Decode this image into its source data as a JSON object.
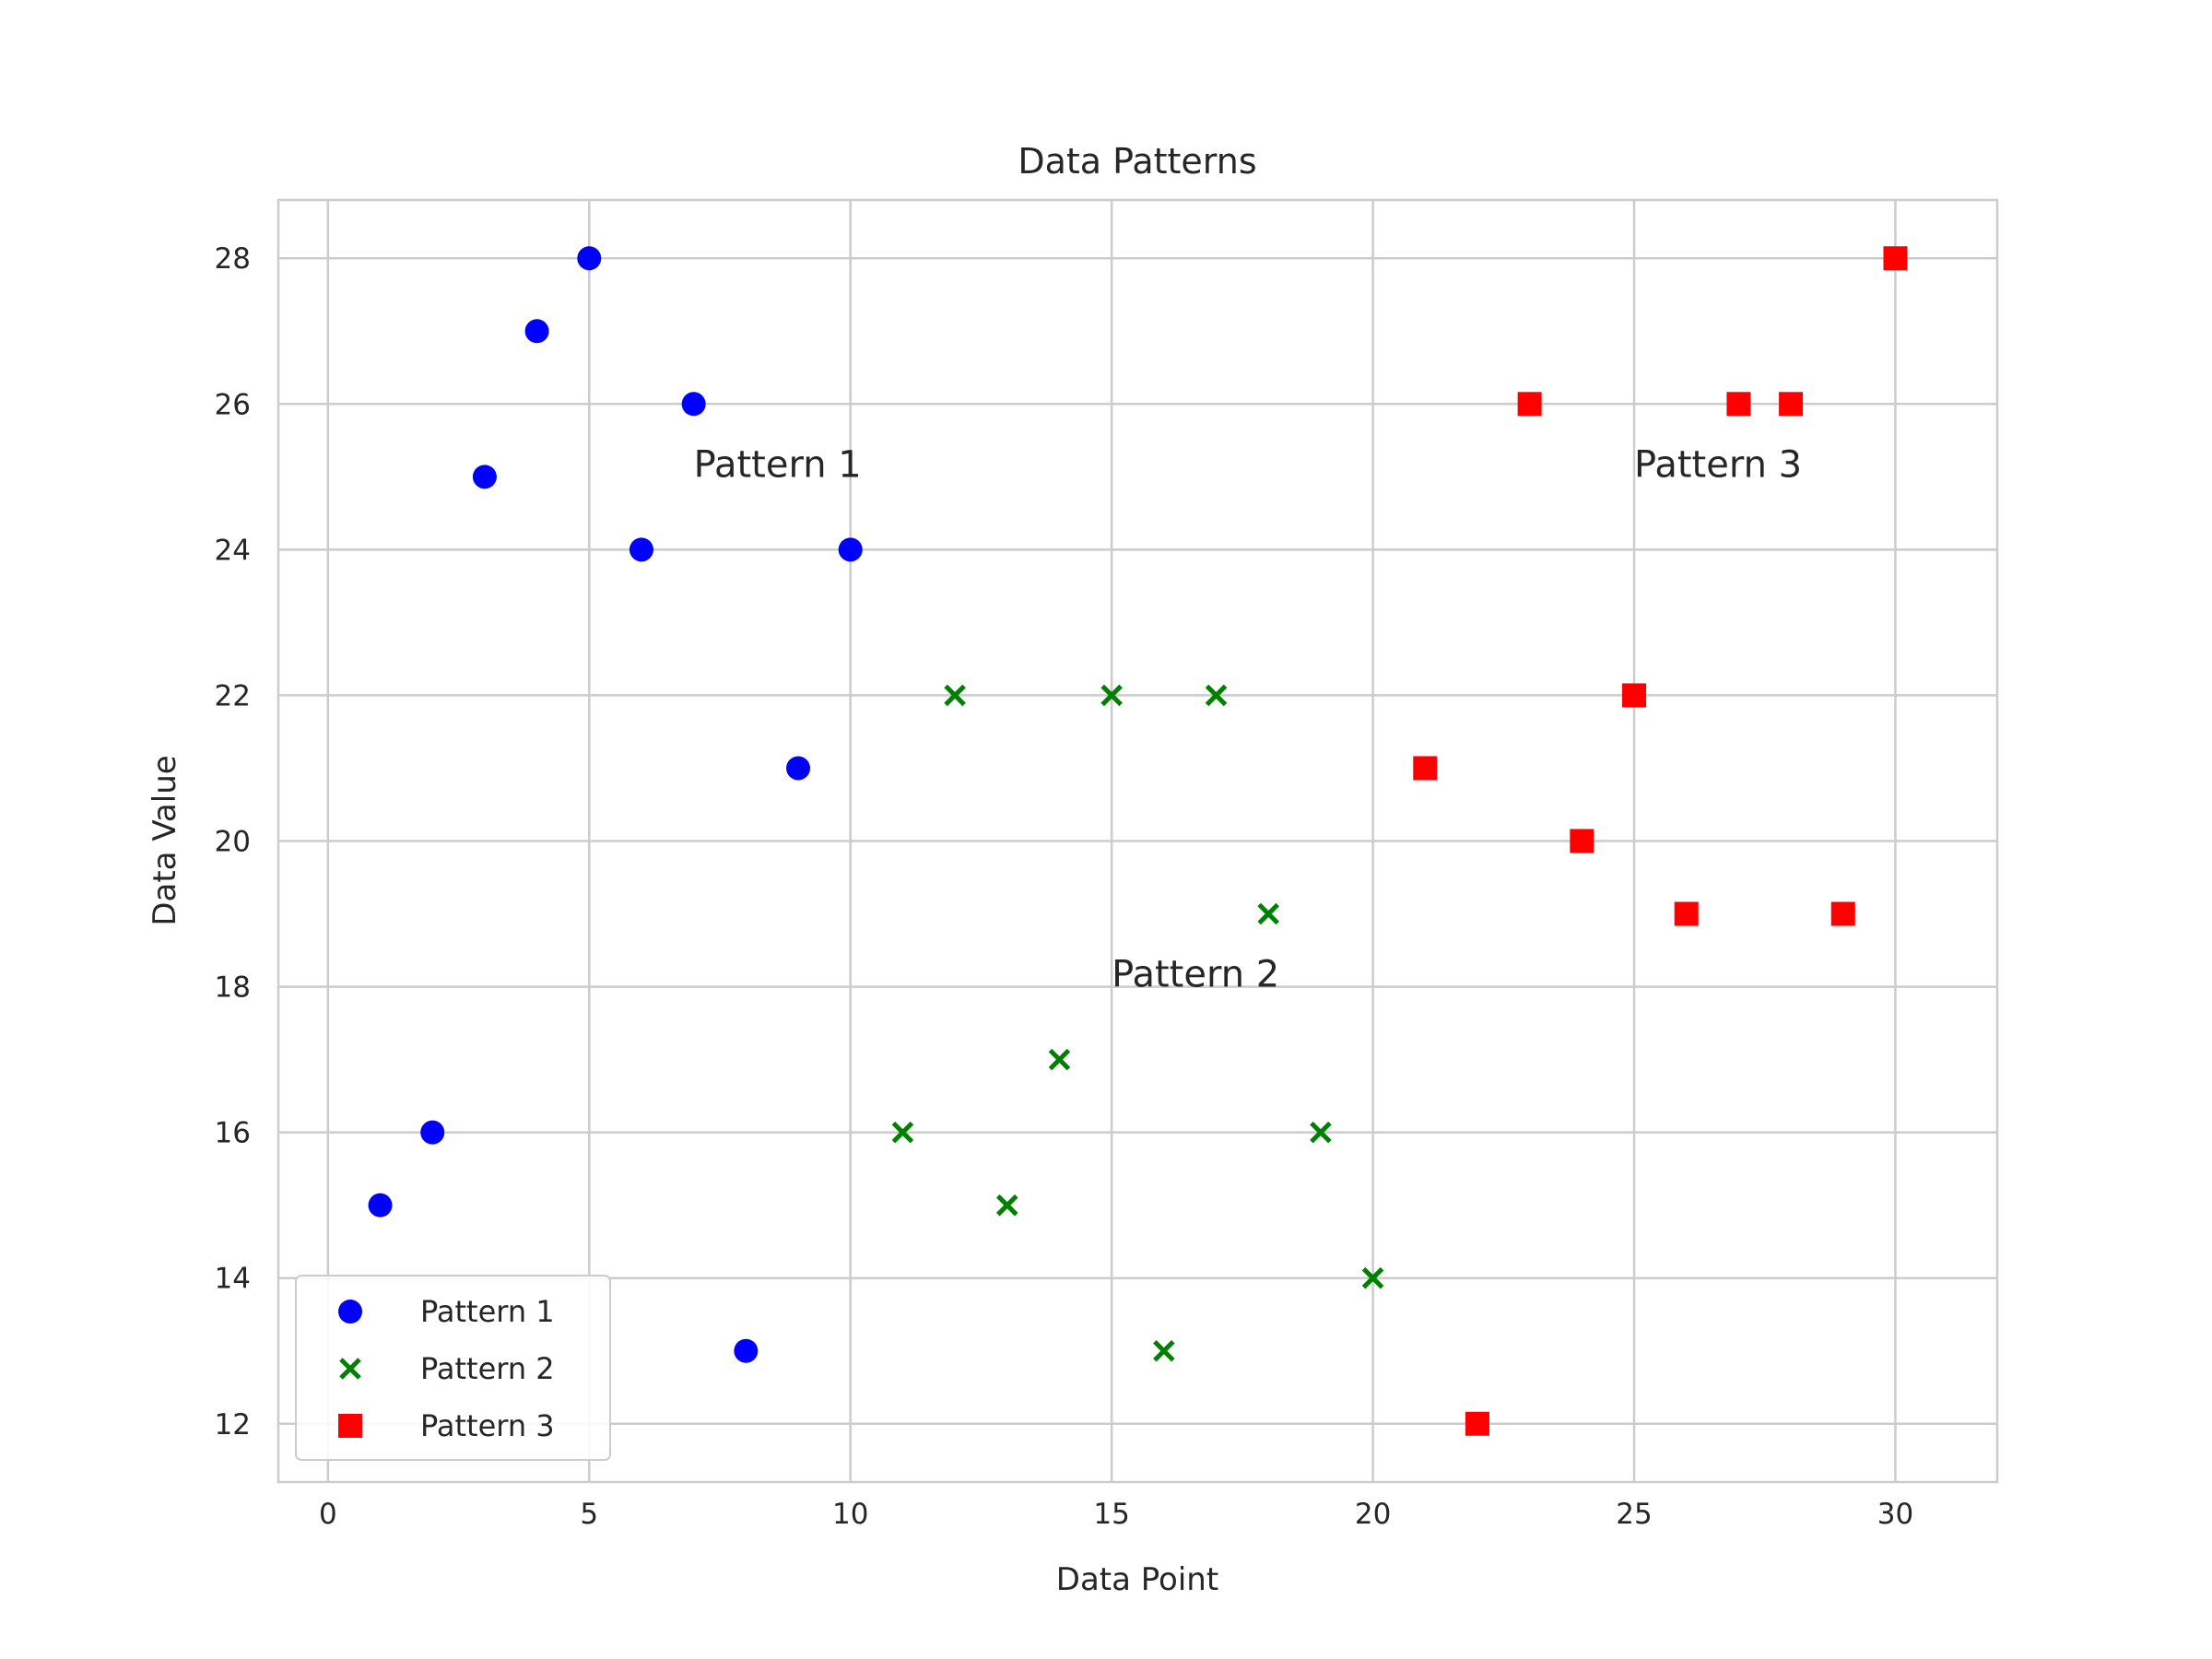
{
  "chart_data": {
    "type": "scatter",
    "title": "Data Patterns",
    "xlabel": "Data Point",
    "ylabel": "Data Value",
    "xlim": [
      -0.95,
      31.95
    ],
    "ylim": [
      11.2,
      28.8
    ],
    "xticks": [
      0,
      5,
      10,
      15,
      20,
      25,
      30
    ],
    "yticks": [
      12,
      14,
      16,
      18,
      20,
      22,
      24,
      26,
      28
    ],
    "grid": true,
    "legend_position": "lower-left",
    "series": [
      {
        "name": "Pattern 1",
        "marker": "circle",
        "color": "#0000ff",
        "x": [
          1,
          2,
          3,
          4,
          5,
          6,
          7,
          8,
          9,
          10
        ],
        "y": [
          15,
          16,
          25,
          27,
          28,
          24,
          26,
          13,
          21,
          24
        ]
      },
      {
        "name": "Pattern 2",
        "marker": "x",
        "color": "#008000",
        "x": [
          11,
          12,
          13,
          14,
          15,
          16,
          17,
          18,
          19,
          20
        ],
        "y": [
          16,
          22,
          15,
          17,
          22,
          13,
          22,
          19,
          16,
          14
        ]
      },
      {
        "name": "Pattern 3",
        "marker": "square",
        "color": "#ff0000",
        "x": [
          21,
          22,
          23,
          24,
          25,
          26,
          27,
          28,
          29,
          30
        ],
        "y": [
          21,
          12,
          26,
          20,
          22,
          19,
          26,
          26,
          19,
          28
        ]
      }
    ],
    "annotations": [
      {
        "text": "Pattern 1",
        "x": 7,
        "y": 25
      },
      {
        "text": "Pattern 2",
        "x": 15,
        "y": 18
      },
      {
        "text": "Pattern 3",
        "x": 25,
        "y": 25
      }
    ]
  }
}
